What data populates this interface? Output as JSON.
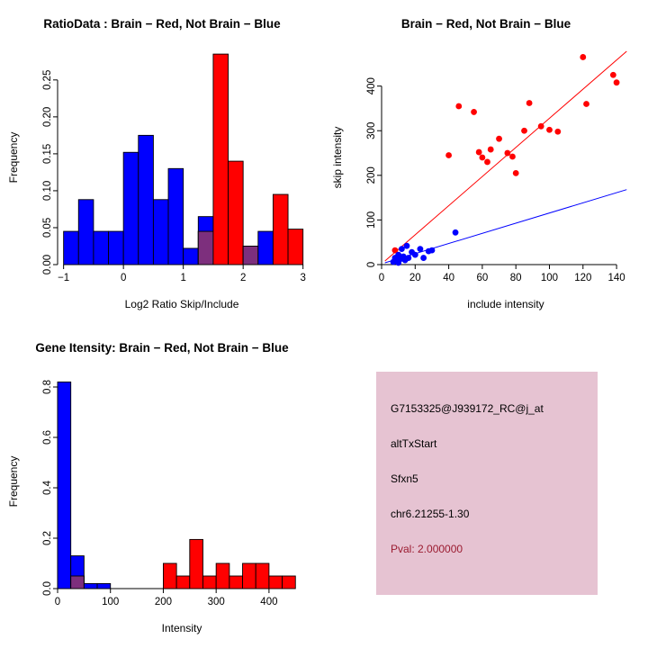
{
  "panels": {
    "info_box": {
      "bg": "#e6c3d2",
      "lines": [
        {
          "text": "G7153325@J939172_RC@j_at",
          "color": "#000000"
        },
        {
          "text": "altTxStart",
          "color": "#000000"
        },
        {
          "text": "Sfxn5",
          "color": "#000000"
        },
        {
          "text": "chr6.21255-1.30",
          "color": "#000000"
        },
        {
          "text": "Pval: 2.000000",
          "color": "#9b1b30"
        }
      ]
    }
  },
  "chart_data": [
    {
      "type": "bar",
      "subtype": "histogram",
      "title": "RatioData : Brain − Red, Not Brain − Blue",
      "xlabel": "Log2 Ratio Skip/Include",
      "ylabel": "Frequency",
      "bin_start": -1.0,
      "bin_width": 0.25,
      "series": [
        {
          "name": "Not Brain",
          "color": "#0000ff",
          "values": [
            0.045,
            0.088,
            0.045,
            0.045,
            0.152,
            0.175,
            0.088,
            0.13,
            0.022,
            0.065,
            0,
            0,
            0.025,
            0.045,
            0,
            0
          ]
        },
        {
          "name": "Brain",
          "color": "#ff0000",
          "values": [
            0,
            0,
            0,
            0,
            0,
            0,
            0,
            0,
            0,
            0.045,
            0.285,
            0.14,
            0.025,
            0,
            0.095,
            0.048
          ]
        }
      ],
      "overlap_color": "#7d2f7d",
      "xlim": [
        -1.1,
        3.05
      ],
      "ylim": [
        0,
        0.29
      ],
      "xticks": [
        -1,
        0,
        1,
        2,
        3
      ],
      "yticks": [
        0,
        0.05,
        0.1,
        0.15,
        0.2,
        0.25
      ],
      "ytick_labels": [
        "0.00",
        "0.05",
        "0.10",
        "0.15",
        "0.20",
        "0.25"
      ],
      "grid": false,
      "legend": "none"
    },
    {
      "type": "scatter",
      "title": "Brain − Red, Not Brain − Blue",
      "xlabel": "include intensity",
      "ylabel": "skip intensity",
      "xlim": [
        0,
        148
      ],
      "ylim": [
        0,
        480
      ],
      "xticks": [
        0,
        20,
        40,
        60,
        80,
        100,
        120,
        140
      ],
      "yticks": [
        0,
        100,
        200,
        300,
        400
      ],
      "series": [
        {
          "name": "Brain",
          "color": "#ff0000",
          "points": [
            [
              8,
              32
            ],
            [
              40,
              245
            ],
            [
              46,
              355
            ],
            [
              55,
              342
            ],
            [
              58,
              252
            ],
            [
              60,
              240
            ],
            [
              63,
              230
            ],
            [
              65,
              258
            ],
            [
              70,
              282
            ],
            [
              75,
              250
            ],
            [
              78,
              242
            ],
            [
              80,
              205
            ],
            [
              85,
              300
            ],
            [
              88,
              362
            ],
            [
              95,
              310
            ],
            [
              100,
              302
            ],
            [
              105,
              298
            ],
            [
              120,
              465
            ],
            [
              122,
              360
            ],
            [
              138,
              425
            ],
            [
              140,
              408
            ]
          ]
        },
        {
          "name": "Not Brain",
          "color": "#0000ff",
          "points": [
            [
              7,
              6
            ],
            [
              8,
              15
            ],
            [
              9,
              10
            ],
            [
              10,
              4
            ],
            [
              10,
              22
            ],
            [
              11,
              12
            ],
            [
              12,
              35
            ],
            [
              13,
              18
            ],
            [
              14,
              10
            ],
            [
              15,
              42
            ],
            [
              16,
              15
            ],
            [
              18,
              28
            ],
            [
              20,
              22
            ],
            [
              23,
              35
            ],
            [
              25,
              15
            ],
            [
              28,
              30
            ],
            [
              30,
              32
            ],
            [
              44,
              72
            ]
          ]
        }
      ],
      "lines": [
        {
          "name": "brain-fit-line",
          "color": "#ff0000",
          "x1": 2,
          "y1": 8,
          "x2": 146,
          "y2": 478
        },
        {
          "name": "notbrain-fit-line",
          "color": "#0000ff",
          "x1": 2,
          "y1": 4,
          "x2": 146,
          "y2": 168
        }
      ],
      "grid": false,
      "legend": "none"
    },
    {
      "type": "bar",
      "subtype": "histogram",
      "title": "Gene Itensity: Brain − Red, Not Brain − Blue",
      "xlabel": "Intensity",
      "ylabel": "Frequency",
      "bin_start": 0,
      "bin_width": 25,
      "series": [
        {
          "name": "Not Brain",
          "color": "#0000ff",
          "values": [
            0.82,
            0.13,
            0.02,
            0.02,
            0,
            0,
            0,
            0,
            0,
            0,
            0,
            0,
            0,
            0,
            0,
            0,
            0,
            0
          ]
        },
        {
          "name": "Brain",
          "color": "#ff0000",
          "values": [
            0,
            0.05,
            0,
            0,
            0,
            0,
            0,
            0,
            0.1,
            0.05,
            0.195,
            0.05,
            0.1,
            0.05,
            0.1,
            0.1,
            0.05,
            0.05
          ]
        }
      ],
      "overlap_color": "#7d2f7d",
      "xlim": [
        0,
        470
      ],
      "ylim": [
        0,
        0.85
      ],
      "xticks": [
        0,
        100,
        200,
        300,
        400
      ],
      "yticks": [
        0,
        0.2,
        0.4,
        0.6,
        0.8
      ],
      "ytick_labels": [
        "0.0",
        "0.2",
        "0.4",
        "0.6",
        "0.8"
      ],
      "grid": false,
      "legend": "none"
    }
  ]
}
